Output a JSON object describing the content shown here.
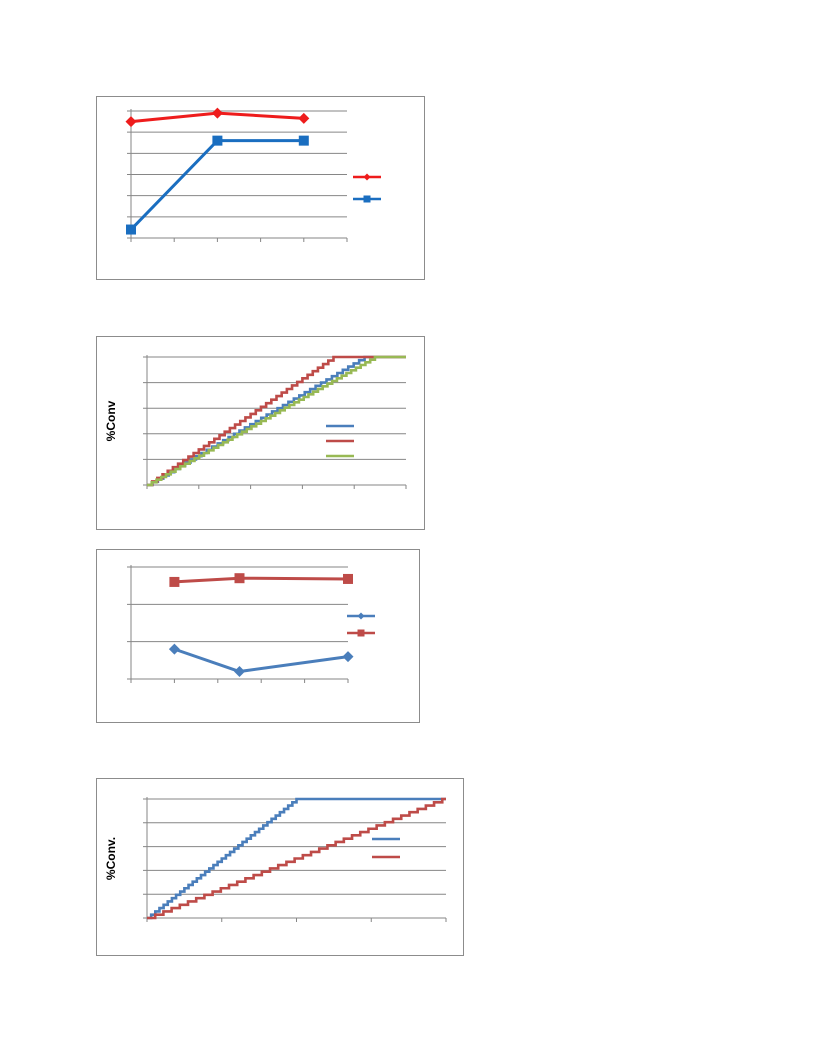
{
  "colors": {
    "red": "#ee1c1c",
    "blue": "#1a6ec0",
    "steel_blue": "#4a7ebb",
    "dark_red": "#be4b48",
    "green": "#98b954",
    "grid": "#868686"
  },
  "chart_data": [
    {
      "type": "line",
      "grid": true,
      "legend_position": "right",
      "x": [
        0,
        2,
        4
      ],
      "xlim": [
        0,
        5
      ],
      "ylim": [
        0,
        6
      ],
      "ylabel": "",
      "series": [
        {
          "values": [
            5.5,
            5.9,
            5.65
          ],
          "color": "#ee1c1c",
          "marker": "diamond"
        },
        {
          "values": [
            0.4,
            4.6,
            4.6
          ],
          "color": "#1a6ec0",
          "marker": "square"
        }
      ]
    },
    {
      "type": "line",
      "style": "step",
      "grid": true,
      "legend_position": "right",
      "xlim": [
        0,
        5
      ],
      "ylim": [
        0,
        100
      ],
      "ylabel": "%Conv",
      "series": [
        {
          "color": "#4a7ebb",
          "end_x": 4.2,
          "steps": 40
        },
        {
          "color": "#be4b48",
          "end_x": 3.6,
          "steps": 36
        },
        {
          "color": "#98b954",
          "end_x": 4.4,
          "steps": 48
        }
      ]
    },
    {
      "type": "line",
      "grid": true,
      "legend_position": "right",
      "x": [
        1,
        2.5,
        5
      ],
      "xlim": [
        0,
        5
      ],
      "ylim": [
        0,
        3
      ],
      "ylabel": "",
      "series": [
        {
          "values": [
            0.8,
            0.2,
            0.6
          ],
          "color": "#4a7ebb",
          "marker": "diamond"
        },
        {
          "values": [
            2.6,
            2.7,
            2.68
          ],
          "color": "#be4b48",
          "marker": "square"
        }
      ]
    },
    {
      "type": "line",
      "style": "step",
      "grid": true,
      "legend_position": "right",
      "xlim": [
        0,
        4
      ],
      "ylim": [
        0,
        100
      ],
      "ylabel": "%Conv.",
      "series": [
        {
          "color": "#4a7ebb",
          "end_x": 2.0,
          "steps": 36
        },
        {
          "color": "#be4b48",
          "end_x": 3.95,
          "steps": 36
        }
      ]
    }
  ]
}
